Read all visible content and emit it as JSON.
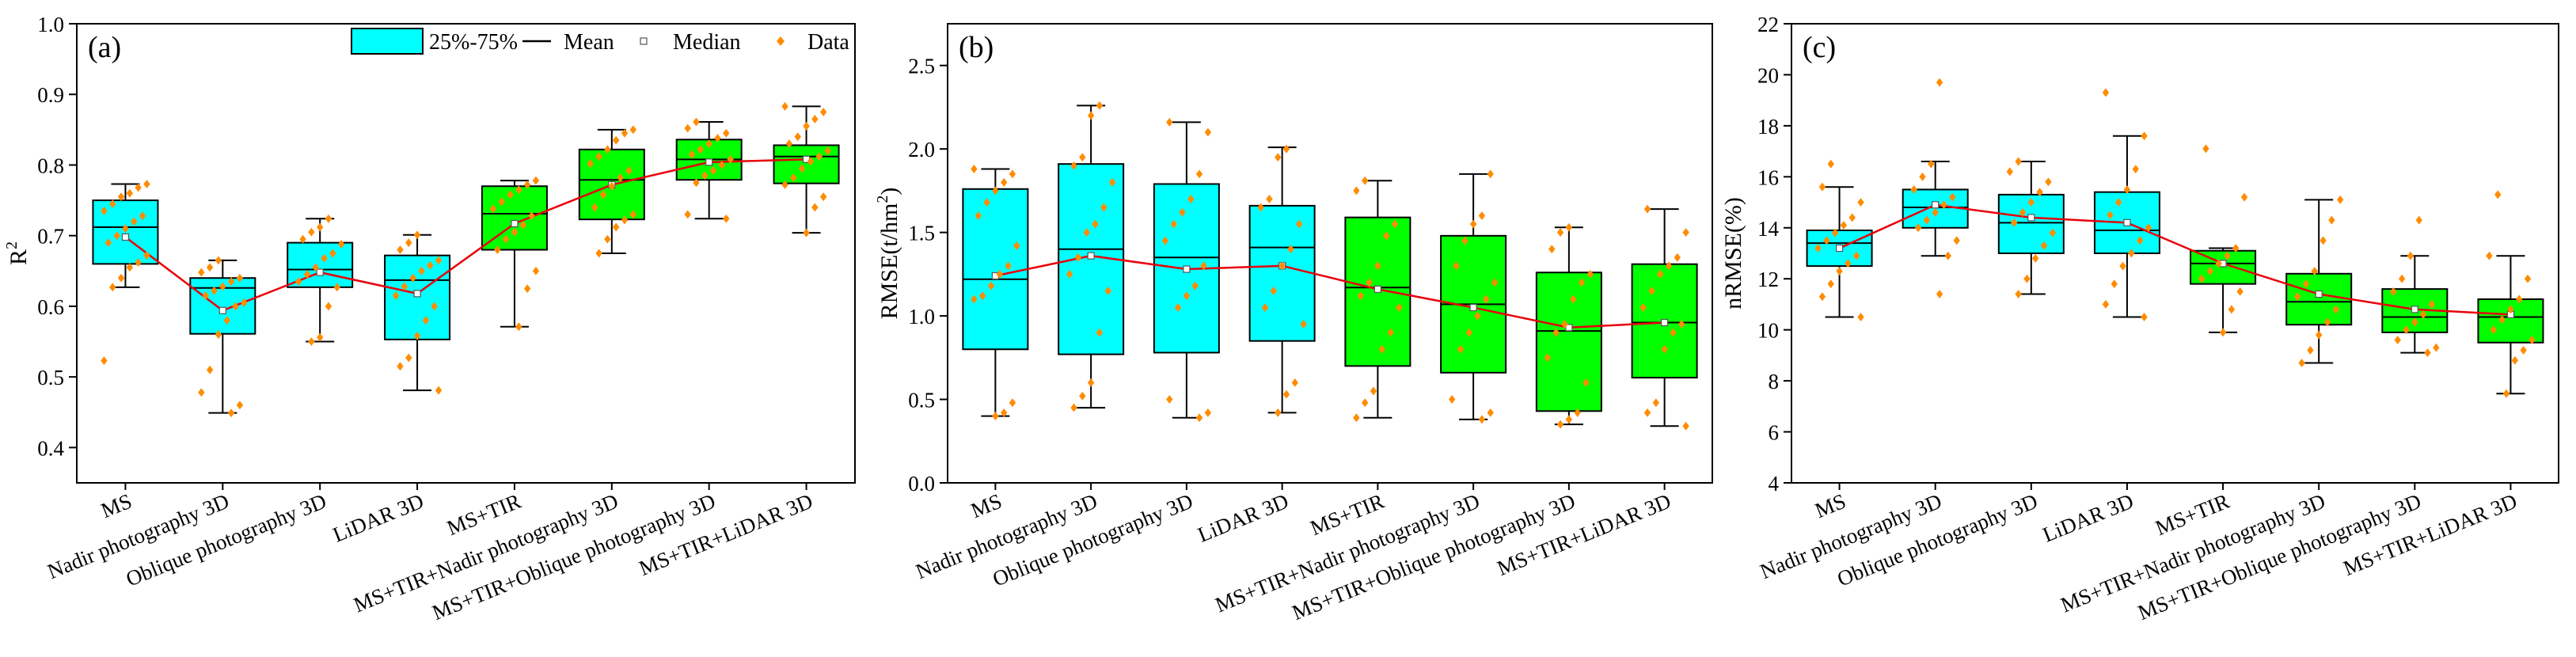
{
  "legend": {
    "box_label": "25%-75%",
    "mean_label": "Mean",
    "median_label": "Median",
    "data_label": "Data"
  },
  "colors": {
    "single_source_box": "#00FFFF",
    "fusion_box": "#00FF00",
    "mean_line": "#E8000B",
    "data_points": "#FF8C00",
    "axis": "#000000"
  },
  "chart_data": [
    {
      "type": "box",
      "panel_label": "(a)",
      "ylabel": "R",
      "ylabel_superscript": "2",
      "xlabel": "",
      "ylim": [
        0.35,
        1.0
      ],
      "yticks": [
        0.4,
        0.5,
        0.6,
        0.7,
        0.8,
        0.9,
        1.0
      ],
      "ytick_labels": [
        "0.4",
        "0.5",
        "0.6",
        "0.7",
        "0.8",
        "0.9",
        "1.0"
      ],
      "legend_position": "top-right",
      "categories": [
        "MS",
        "Nadir photography 3D",
        "Oblique photography 3D",
        "LiDAR 3D",
        "MS+TIR",
        "MS+TIR+Nadir photography 3D",
        "MS+TIR+Oblique photography 3D",
        "MS+TIR+LiDAR 3D"
      ],
      "box_colors": [
        "#00FFFF",
        "#00FFFF",
        "#00FFFF",
        "#00FFFF",
        "#00FF00",
        "#00FF00",
        "#00FF00",
        "#00FF00"
      ],
      "boxes": [
        {
          "whisker_low": 0.627,
          "q1": 0.66,
          "median": 0.712,
          "q3": 0.75,
          "whisker_high": 0.773,
          "mean": 0.698
        },
        {
          "whisker_low": 0.449,
          "q1": 0.561,
          "median": 0.626,
          "q3": 0.64,
          "whisker_high": 0.665,
          "mean": 0.594
        },
        {
          "whisker_low": 0.55,
          "q1": 0.627,
          "median": 0.652,
          "q3": 0.69,
          "whisker_high": 0.724,
          "mean": 0.648
        },
        {
          "whisker_low": 0.481,
          "q1": 0.553,
          "median": 0.637,
          "q3": 0.672,
          "whisker_high": 0.701,
          "mean": 0.618
        },
        {
          "whisker_low": 0.571,
          "q1": 0.68,
          "median": 0.731,
          "q3": 0.77,
          "whisker_high": 0.778,
          "mean": 0.717
        },
        {
          "whisker_low": 0.675,
          "q1": 0.723,
          "median": 0.779,
          "q3": 0.822,
          "whisker_high": 0.85,
          "mean": 0.772
        },
        {
          "whisker_low": 0.724,
          "q1": 0.779,
          "median": 0.808,
          "q3": 0.836,
          "whisker_high": 0.861,
          "mean": 0.804
        },
        {
          "whisker_low": 0.704,
          "q1": 0.774,
          "median": 0.812,
          "q3": 0.828,
          "whisker_high": 0.883,
          "mean": 0.808
        }
      ],
      "points": [
        [
          0.523,
          0.627,
          0.64,
          0.655,
          0.662,
          0.672,
          0.69,
          0.7,
          0.71,
          0.72,
          0.728,
          0.735,
          0.745,
          0.755,
          0.76,
          0.768,
          0.773
        ],
        [
          0.449,
          0.46,
          0.478,
          0.51,
          0.56,
          0.58,
          0.6,
          0.605,
          0.615,
          0.622,
          0.628,
          0.635,
          0.64,
          0.648,
          0.655,
          0.665
        ],
        [
          0.55,
          0.556,
          0.6,
          0.627,
          0.635,
          0.645,
          0.655,
          0.668,
          0.675,
          0.688,
          0.695,
          0.705,
          0.712,
          0.724
        ],
        [
          0.481,
          0.515,
          0.527,
          0.558,
          0.58,
          0.6,
          0.615,
          0.628,
          0.64,
          0.65,
          0.658,
          0.665,
          0.68,
          0.69,
          0.701
        ],
        [
          0.571,
          0.625,
          0.65,
          0.68,
          0.695,
          0.705,
          0.715,
          0.728,
          0.738,
          0.748,
          0.758,
          0.765,
          0.772,
          0.778
        ],
        [
          0.675,
          0.695,
          0.712,
          0.722,
          0.73,
          0.74,
          0.758,
          0.77,
          0.782,
          0.792,
          0.802,
          0.812,
          0.822,
          0.835,
          0.845,
          0.85
        ],
        [
          0.724,
          0.73,
          0.775,
          0.785,
          0.792,
          0.8,
          0.808,
          0.815,
          0.822,
          0.83,
          0.838,
          0.845,
          0.852,
          0.861
        ],
        [
          0.704,
          0.74,
          0.755,
          0.772,
          0.782,
          0.795,
          0.805,
          0.812,
          0.82,
          0.83,
          0.84,
          0.855,
          0.865,
          0.875,
          0.883
        ]
      ]
    },
    {
      "type": "box",
      "panel_label": "(b)",
      "ylabel": "RMSE(t/hm",
      "ylabel_superscript": "2",
      "ylabel_suffix": ")",
      "xlabel": "",
      "ylim": [
        0.0,
        2.75
      ],
      "yticks": [
        0.0,
        0.5,
        1.0,
        1.5,
        2.0,
        2.5
      ],
      "ytick_labels": [
        "0.0",
        "0.5",
        "1.0",
        "1.5",
        "2.0",
        "2.5"
      ],
      "categories": [
        "MS",
        "Nadir photography 3D",
        "Oblique photography 3D",
        "LiDAR 3D",
        "MS+TIR",
        "MS+TIR+Nadir photography 3D",
        "MS+TIR+Oblique photography 3D",
        "MS+TIR+LiDAR 3D"
      ],
      "box_colors": [
        "#00FFFF",
        "#00FFFF",
        "#00FFFF",
        "#00FFFF",
        "#00FF00",
        "#00FF00",
        "#00FF00",
        "#00FF00"
      ],
      "boxes": [
        {
          "whisker_low": 0.4,
          "q1": 0.8,
          "median": 1.22,
          "q3": 1.76,
          "whisker_high": 1.88,
          "mean": 1.24
        },
        {
          "whisker_low": 0.45,
          "q1": 0.77,
          "median": 1.4,
          "q3": 1.91,
          "whisker_high": 2.26,
          "mean": 1.36
        },
        {
          "whisker_low": 0.39,
          "q1": 0.78,
          "median": 1.35,
          "q3": 1.79,
          "whisker_high": 2.16,
          "mean": 1.28
        },
        {
          "whisker_low": 0.42,
          "q1": 0.85,
          "median": 1.41,
          "q3": 1.66,
          "whisker_high": 2.01,
          "mean": 1.3
        },
        {
          "whisker_low": 0.39,
          "q1": 0.7,
          "median": 1.17,
          "q3": 1.59,
          "whisker_high": 1.81,
          "mean": 1.16
        },
        {
          "whisker_low": 0.38,
          "q1": 0.66,
          "median": 1.07,
          "q3": 1.48,
          "whisker_high": 1.85,
          "mean": 1.05
        },
        {
          "whisker_low": 0.35,
          "q1": 0.43,
          "median": 0.91,
          "q3": 1.26,
          "whisker_high": 1.53,
          "mean": 0.93
        },
        {
          "whisker_low": 0.34,
          "q1": 0.63,
          "median": 0.96,
          "q3": 1.31,
          "whisker_high": 1.64,
          "mean": 0.96
        }
      ],
      "points": [
        [
          0.4,
          0.42,
          0.48,
          1.1,
          1.12,
          1.18,
          1.25,
          1.3,
          1.42,
          1.6,
          1.68,
          1.75,
          1.8,
          1.85,
          1.88
        ],
        [
          0.45,
          0.52,
          0.6,
          0.9,
          1.15,
          1.25,
          1.35,
          1.5,
          1.55,
          1.65,
          1.8,
          1.9,
          1.95,
          2.2,
          2.26
        ],
        [
          0.39,
          0.42,
          0.5,
          1.05,
          1.12,
          1.18,
          1.3,
          1.45,
          1.55,
          1.62,
          1.7,
          1.85,
          2.1,
          2.16
        ],
        [
          0.42,
          0.53,
          0.6,
          0.95,
          1.05,
          1.15,
          1.3,
          1.4,
          1.55,
          1.65,
          1.7,
          1.95,
          2.0
        ],
        [
          0.39,
          0.48,
          0.55,
          0.8,
          0.9,
          1.05,
          1.12,
          1.2,
          1.3,
          1.48,
          1.55,
          1.75,
          1.81
        ],
        [
          0.38,
          0.42,
          0.5,
          0.8,
          0.9,
          1.0,
          1.1,
          1.2,
          1.3,
          1.45,
          1.55,
          1.6,
          1.85
        ],
        [
          0.35,
          0.38,
          0.42,
          0.6,
          0.75,
          0.9,
          0.95,
          1.1,
          1.2,
          1.25,
          1.4,
          1.5,
          1.53
        ],
        [
          0.34,
          0.42,
          0.48,
          0.8,
          0.9,
          0.95,
          1.05,
          1.15,
          1.25,
          1.3,
          1.35,
          1.5,
          1.64
        ]
      ]
    },
    {
      "type": "box",
      "panel_label": "(c)",
      "ylabel": "nRMSE(%)",
      "xlabel": "",
      "ylim": [
        4,
        22
      ],
      "yticks": [
        4,
        6,
        8,
        10,
        12,
        14,
        16,
        18,
        20,
        22
      ],
      "ytick_labels": [
        "4",
        "6",
        "8",
        "10",
        "12",
        "14",
        "16",
        "18",
        "20",
        "22"
      ],
      "categories": [
        "MS",
        "Nadir photography 3D",
        "Oblique photography 3D",
        "LiDAR 3D",
        "MS+TIR",
        "MS+TIR+Nadir photography 3D",
        "MS+TIR+Oblique photography 3D",
        "MS+TIR+LiDAR 3D"
      ],
      "box_colors": [
        "#00FFFF",
        "#00FFFF",
        "#00FFFF",
        "#00FFFF",
        "#00FF00",
        "#00FF00",
        "#00FF00",
        "#00FF00"
      ],
      "boxes": [
        {
          "whisker_low": 10.5,
          "q1": 12.5,
          "median": 13.4,
          "q3": 13.9,
          "whisker_high": 15.6,
          "mean": 13.2
        },
        {
          "whisker_low": 12.9,
          "q1": 14.0,
          "median": 14.8,
          "q3": 15.5,
          "whisker_high": 16.6,
          "mean": 14.9
        },
        {
          "whisker_low": 11.4,
          "q1": 13.0,
          "median": 14.2,
          "q3": 15.3,
          "whisker_high": 16.6,
          "mean": 14.4
        },
        {
          "whisker_low": 10.5,
          "q1": 13.0,
          "median": 13.9,
          "q3": 15.4,
          "whisker_high": 17.6,
          "mean": 14.2
        },
        {
          "whisker_low": 9.9,
          "q1": 11.8,
          "median": 12.6,
          "q3": 13.1,
          "whisker_high": 13.2,
          "mean": 12.6
        },
        {
          "whisker_low": 8.7,
          "q1": 10.2,
          "median": 11.1,
          "q3": 12.2,
          "whisker_high": 15.1,
          "mean": 11.4
        },
        {
          "whisker_low": 9.1,
          "q1": 9.9,
          "median": 10.5,
          "q3": 11.6,
          "whisker_high": 12.9,
          "mean": 10.8
        },
        {
          "whisker_low": 7.5,
          "q1": 9.5,
          "median": 10.5,
          "q3": 11.2,
          "whisker_high": 12.9,
          "mean": 10.6
        }
      ],
      "points": [
        [
          10.5,
          11.3,
          11.8,
          12.3,
          12.6,
          12.9,
          13.2,
          13.5,
          13.8,
          14.1,
          14.4,
          15.0,
          15.6,
          16.5
        ],
        [
          11.4,
          12.9,
          13.5,
          14.0,
          14.3,
          14.6,
          14.9,
          15.2,
          15.5,
          16.0,
          16.5,
          19.7
        ],
        [
          11.4,
          12.0,
          12.8,
          13.3,
          13.8,
          14.2,
          14.6,
          15.0,
          15.4,
          15.8,
          16.2,
          16.6
        ],
        [
          10.5,
          11.0,
          11.8,
          12.5,
          13.0,
          13.5,
          14.0,
          14.5,
          15.0,
          15.5,
          16.3,
          17.6,
          19.3
        ],
        [
          9.9,
          10.8,
          11.5,
          12.0,
          12.3,
          12.6,
          12.9,
          13.2,
          15.2,
          17.1
        ],
        [
          8.7,
          9.2,
          9.8,
          10.3,
          10.8,
          11.3,
          11.8,
          12.3,
          13.5,
          14.3,
          15.1
        ],
        [
          9.1,
          9.3,
          9.6,
          10.0,
          10.3,
          10.6,
          11.0,
          11.5,
          12.0,
          12.9,
          14.3
        ],
        [
          7.5,
          8.8,
          9.2,
          9.6,
          10.0,
          10.4,
          10.8,
          11.2,
          12.0,
          12.9,
          15.3
        ]
      ]
    }
  ]
}
